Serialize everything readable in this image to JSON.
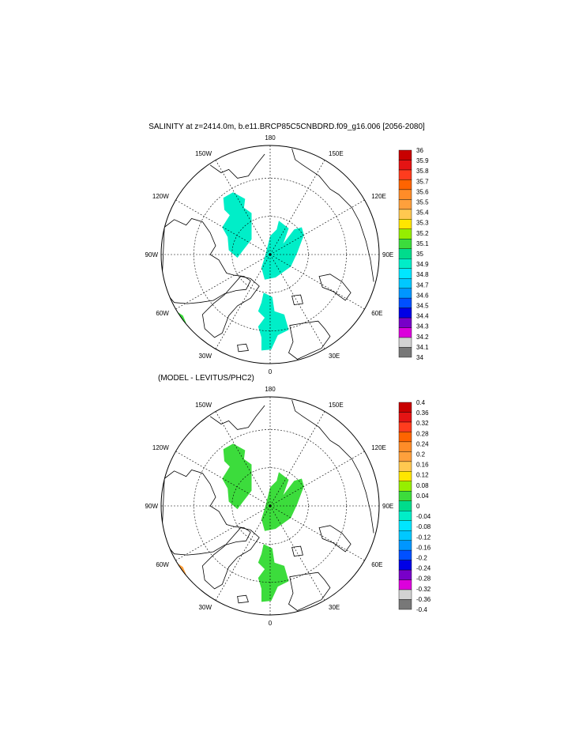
{
  "figure": {
    "panels": [
      {
        "title": "SALINITY at z=2414.0m, b.e11.BRCP85C5CNBDRD.f09_g16.006 [2056-2080]",
        "colorbar": {
          "labels": [
            "36",
            "35.9",
            "35.8",
            "35.7",
            "35.6",
            "35.5",
            "35.4",
            "35.3",
            "35.2",
            "35.1",
            "35",
            "34.9",
            "34.8",
            "34.7",
            "34.6",
            "34.5",
            "34.4",
            "34.3",
            "34.2",
            "34.1",
            "34"
          ],
          "colors": [
            "#c80000",
            "#e41414",
            "#ff3c1e",
            "#ff6400",
            "#ff8c28",
            "#ffa03c",
            "#ffc850",
            "#ffe600",
            "#96ee00",
            "#3cdc3c",
            "#00dc8c",
            "#00eec8",
            "#00e6ff",
            "#00c8ff",
            "#0096ff",
            "#0050ff",
            "#0000e6",
            "#7800c8",
            "#dc00dc",
            "#d2d2d2",
            "#787878"
          ]
        },
        "fill_regions": [
          {
            "name": "central-arctic-left-patch",
            "color": "#00eec8"
          },
          {
            "name": "central-arctic-right-patch",
            "color": "#00eec8"
          },
          {
            "name": "atlantic-inflow-patch",
            "color": "#00eec8"
          },
          {
            "name": "north-atlantic-patch",
            "color": "#3cdc3c"
          }
        ]
      },
      {
        "title": "(MODEL - LEVITUS/PHC2)",
        "colorbar": {
          "labels": [
            "0.4",
            "0.36",
            "0.32",
            "0.28",
            "0.24",
            "0.2",
            "0.16",
            "0.12",
            "0.08",
            "0.04",
            "0",
            "-0.04",
            "-0.08",
            "-0.12",
            "-0.16",
            "-0.2",
            "-0.24",
            "-0.28",
            "-0.32",
            "-0.36",
            "-0.4"
          ],
          "colors": [
            "#c80000",
            "#e41414",
            "#ff3c1e",
            "#ff6400",
            "#ff8c28",
            "#ffa03c",
            "#ffc850",
            "#ffe600",
            "#96ee00",
            "#3cdc3c",
            "#00dc8c",
            "#00eec8",
            "#00e6ff",
            "#00c8ff",
            "#0096ff",
            "#0050ff",
            "#0000e6",
            "#7800c8",
            "#dc00dc",
            "#d2d2d2",
            "#787878"
          ]
        },
        "fill_regions": [
          {
            "name": "central-arctic-left-patch",
            "color": "#3cdc3c"
          },
          {
            "name": "central-arctic-right-patch",
            "color": "#3cdc3c"
          },
          {
            "name": "atlantic-inflow-patch",
            "color": "#3cdc3c"
          },
          {
            "name": "north-atlantic-patch",
            "color": "#ffa03c"
          }
        ]
      }
    ],
    "lon_labels": [
      "180",
      "150E",
      "120E",
      "90E",
      "60E",
      "30E",
      "0",
      "30W",
      "60W",
      "90W",
      "120W",
      "150W"
    ],
    "projection": "north-polar-stereographic",
    "coastline_color": "#000000",
    "graticule_color": "#000000"
  }
}
